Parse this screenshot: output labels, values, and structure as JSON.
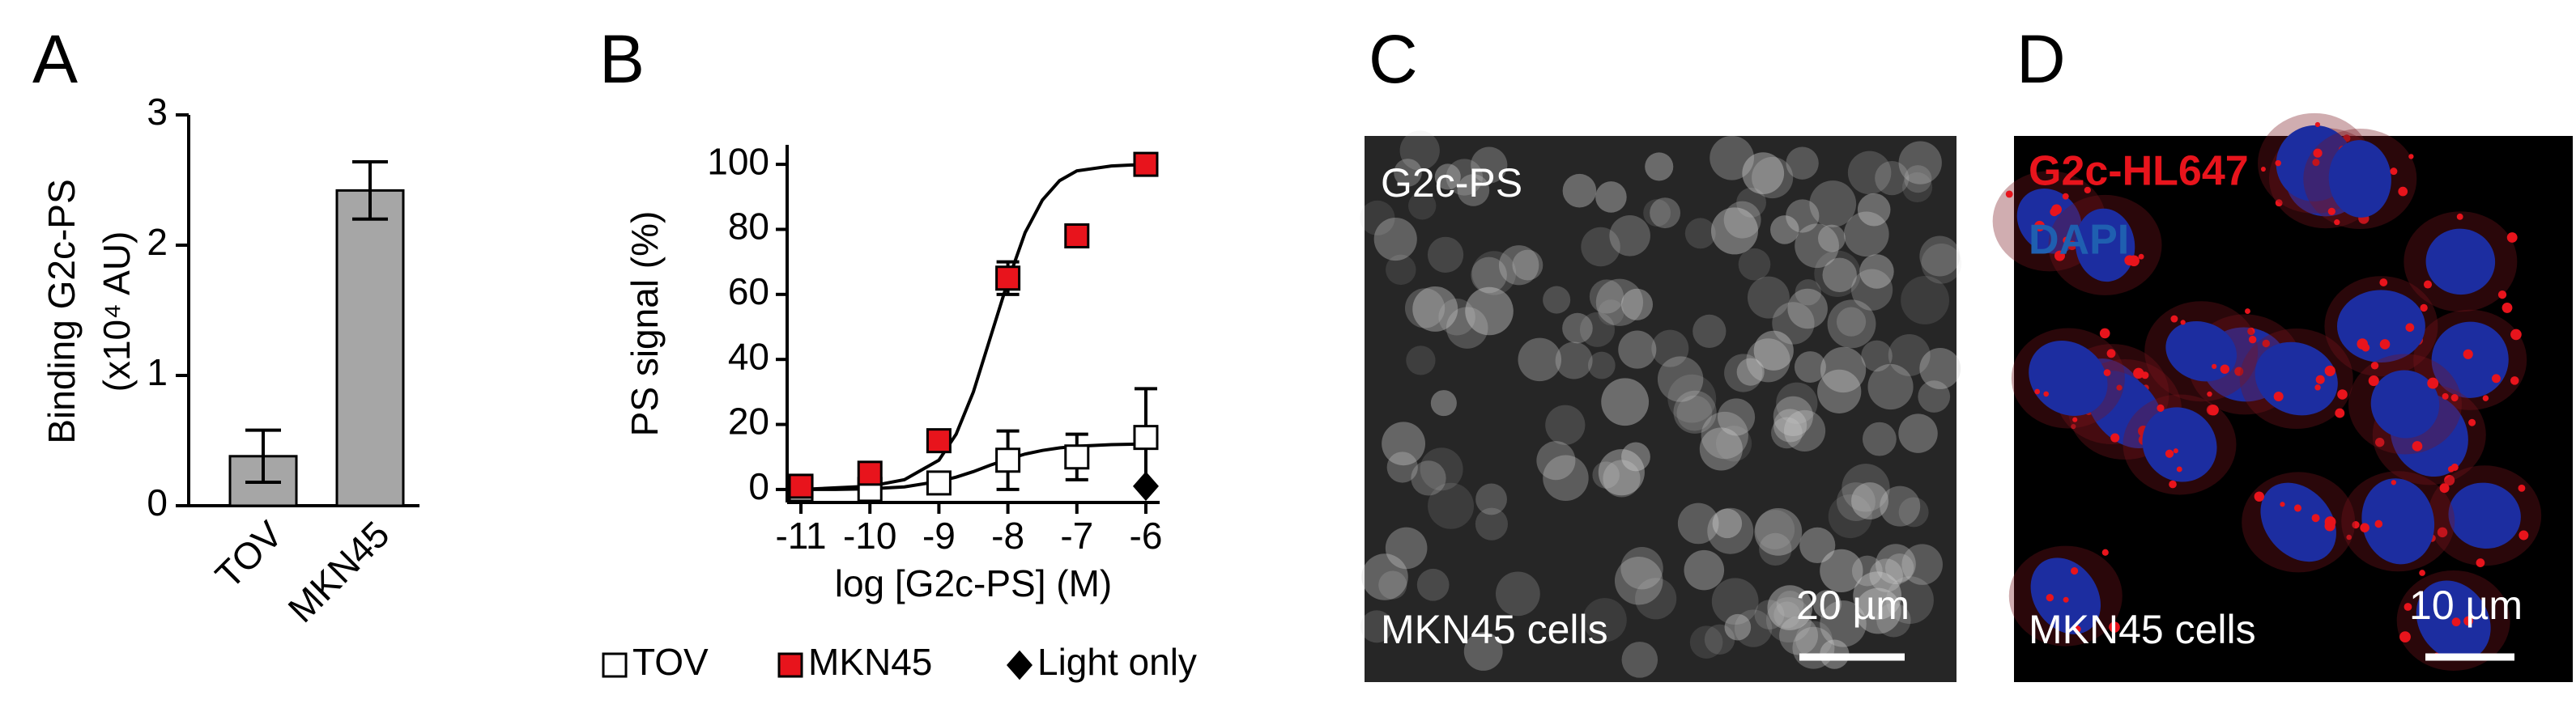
{
  "chart_data": [
    {
      "type": "bar",
      "panel": "A",
      "ylabel": [
        "Binding G2c-PS",
        "(x10⁴ AU)"
      ],
      "categories": [
        "TOV",
        "MKN45"
      ],
      "values": [
        0.38,
        2.42
      ],
      "errors": [
        0.2,
        0.22
      ],
      "color": "#a6a6a6",
      "ylim": [
        0,
        3
      ],
      "yticks": [
        0,
        1,
        2,
        3
      ]
    },
    {
      "type": "scatter",
      "panel": "B",
      "xlabel": "log [G2c-PS] (M)",
      "ylabel": "PS signal (%)",
      "xlim": [
        -11.2,
        -5.8
      ],
      "xticks": [
        -11,
        -10,
        -9,
        -8,
        -7,
        -6
      ],
      "ylim": [
        -4,
        106
      ],
      "yticks": [
        0,
        20,
        40,
        60,
        80,
        100
      ],
      "series": [
        {
          "name": "TOV",
          "color": "#ffffff",
          "marker": "square",
          "x": [
            -11,
            -10,
            -9,
            -8,
            -7,
            -6
          ],
          "values": [
            0,
            0,
            2,
            9,
            10,
            16
          ],
          "errors": [
            1,
            1,
            2,
            9,
            7,
            15
          ],
          "fit": {
            "x": [
              -11,
              -10.5,
              -10,
              -9.5,
              -9,
              -8.75,
              -8.5,
              -8.25,
              -8,
              -7.75,
              -7.5,
              -7.25,
              -7,
              -6.5,
              -6
            ],
            "values": [
              0,
              0,
              0.2,
              0.8,
              2.5,
              3.8,
              5.5,
              7.5,
              9.3,
              10.9,
              12,
              12.8,
              13.3,
              13.8,
              14
            ]
          }
        },
        {
          "name": "MKN45",
          "color": "#e8141c",
          "marker": "square",
          "x": [
            -11,
            -10,
            -9,
            -8,
            -7,
            -6
          ],
          "values": [
            1,
            5,
            15,
            65,
            78,
            100
          ],
          "errors": [
            1,
            1,
            2,
            5,
            2,
            1
          ],
          "fit": {
            "x": [
              -11,
              -10.5,
              -10,
              -9.5,
              -9,
              -8.75,
              -8.5,
              -8.25,
              -8,
              -7.75,
              -7.5,
              -7.25,
              -7,
              -6.5,
              -6
            ],
            "values": [
              0,
              0.5,
              1,
              3,
              9,
              17,
              30,
              47,
              64,
              79,
              89,
              95,
              98,
              99.5,
              100
            ]
          }
        },
        {
          "name": "Light only",
          "color": "#000000",
          "marker": "diamond",
          "x": [
            -6
          ],
          "values": [
            1
          ]
        }
      ]
    }
  ],
  "images": [
    {
      "panel": "C",
      "label": "G2c-PS",
      "caption": "MKN45 cells",
      "scale_bar": "20 µm"
    },
    {
      "panel": "D",
      "labels": [
        {
          "text": "G2c-HL647",
          "color": "#e8141c"
        },
        {
          "text": "DAPI",
          "color": "#1f5fb0"
        }
      ],
      "caption": "MKN45 cells",
      "scale_bar": "10 µm"
    }
  ]
}
